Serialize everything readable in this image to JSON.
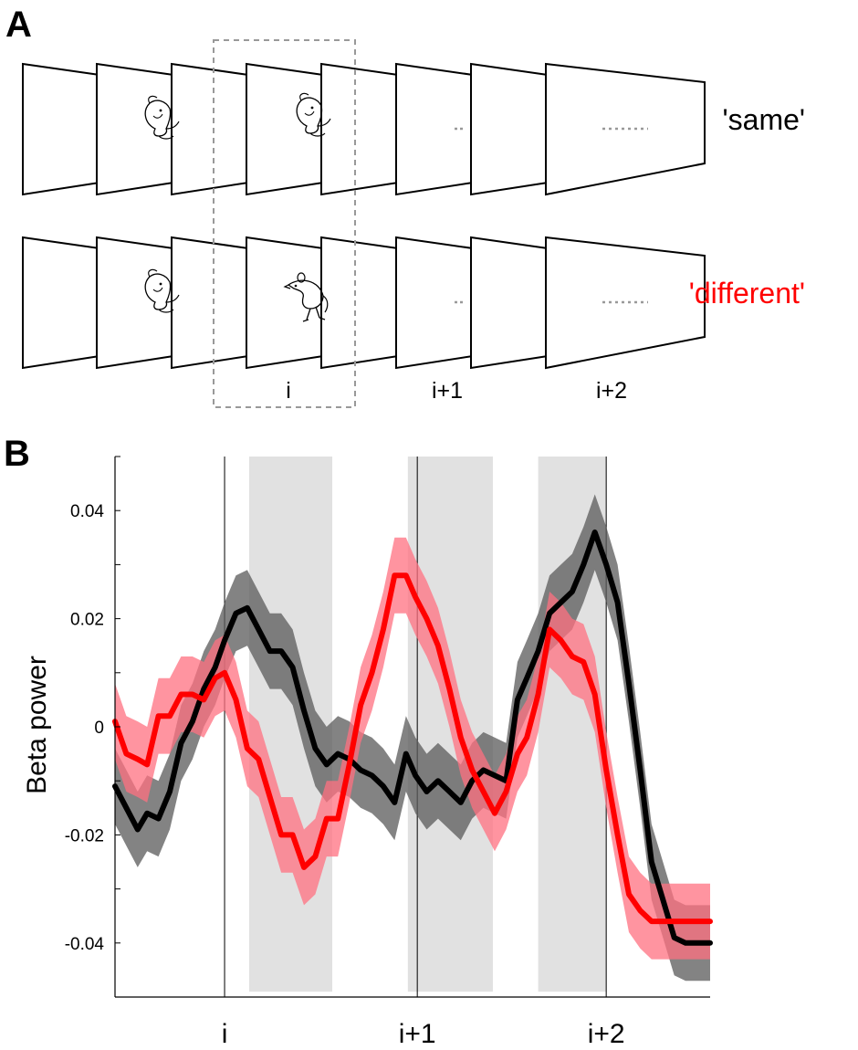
{
  "panel_a": {
    "letter": "A",
    "rows": [
      {
        "label": "'same'",
        "color": "#000000",
        "probe": "same-creature"
      },
      {
        "label": "'different'",
        "color": "#ff0000",
        "probe": "different-creature"
      }
    ],
    "position_labels": [
      "i",
      "i+1",
      "i+2"
    ]
  },
  "panel_b": {
    "letter": "B"
  },
  "chart_data": {
    "type": "line",
    "ylabel": "Beta power",
    "xlabel": "",
    "ylim": [
      -0.05,
      0.05
    ],
    "yticks": [
      -0.04,
      -0.02,
      0,
      0.02,
      0.04
    ],
    "ytick_labels": [
      "-0.04",
      "-0.02",
      "0",
      "0.02",
      "0.04"
    ],
    "xticks": [
      {
        "x": 0.98,
        "label": "i"
      },
      {
        "x": 2.0,
        "label": "i+1"
      },
      {
        "x": 3.0,
        "label": "i+2"
      }
    ],
    "xlim": [
      0.4,
      3.55
    ],
    "shaded_windows": [
      [
        1.11,
        1.55
      ],
      [
        1.95,
        2.4
      ],
      [
        2.64,
        3.0
      ]
    ],
    "grid": false,
    "series": [
      {
        "name": "'same'",
        "color": "#000000",
        "band_color": "#5a5a5a",
        "x": [
          0.4,
          0.46,
          0.52,
          0.57,
          0.63,
          0.69,
          0.75,
          0.81,
          0.87,
          0.93,
          0.98,
          1.04,
          1.1,
          1.16,
          1.22,
          1.28,
          1.34,
          1.4,
          1.46,
          1.52,
          1.58,
          1.64,
          1.7,
          1.76,
          1.82,
          1.88,
          1.94,
          1.99,
          2.05,
          2.11,
          2.17,
          2.23,
          2.29,
          2.35,
          2.41,
          2.47,
          2.53,
          2.58,
          2.64,
          2.7,
          2.76,
          2.82,
          2.88,
          2.94,
          3.0,
          3.06,
          3.12,
          3.18,
          3.24,
          3.3,
          3.36,
          3.42,
          3.48,
          3.55
        ],
        "y": [
          -0.011,
          -0.015,
          -0.019,
          -0.016,
          -0.017,
          -0.012,
          -0.003,
          0.001,
          0.007,
          0.011,
          0.016,
          0.021,
          0.022,
          0.018,
          0.014,
          0.014,
          0.011,
          0.003,
          -0.004,
          -0.007,
          -0.005,
          -0.006,
          -0.008,
          -0.009,
          -0.011,
          -0.014,
          -0.005,
          -0.009,
          -0.012,
          -0.01,
          -0.012,
          -0.014,
          -0.01,
          -0.008,
          -0.009,
          -0.01,
          0.005,
          0.009,
          0.014,
          0.021,
          0.023,
          0.025,
          0.03,
          0.036,
          0.03,
          0.023,
          0.008,
          -0.008,
          -0.025,
          -0.032,
          -0.039,
          -0.04,
          -0.04,
          -0.04
        ],
        "err": 0.007
      },
      {
        "name": "'different'",
        "color": "#ff0000",
        "band_color": "#ff7080",
        "x": [
          0.4,
          0.46,
          0.52,
          0.57,
          0.63,
          0.69,
          0.75,
          0.81,
          0.87,
          0.93,
          0.98,
          1.04,
          1.1,
          1.16,
          1.22,
          1.28,
          1.34,
          1.4,
          1.46,
          1.52,
          1.58,
          1.64,
          1.7,
          1.76,
          1.82,
          1.88,
          1.94,
          1.99,
          2.05,
          2.11,
          2.17,
          2.23,
          2.29,
          2.35,
          2.41,
          2.47,
          2.53,
          2.58,
          2.64,
          2.7,
          2.76,
          2.82,
          2.88,
          2.94,
          3.0,
          3.06,
          3.12,
          3.18,
          3.24,
          3.3,
          3.36,
          3.42,
          3.48,
          3.55
        ],
        "y": [
          0.001,
          -0.005,
          -0.006,
          -0.007,
          0.002,
          0.002,
          0.006,
          0.006,
          0.005,
          0.009,
          0.01,
          0.005,
          -0.004,
          -0.006,
          -0.013,
          -0.02,
          -0.02,
          -0.026,
          -0.024,
          -0.017,
          -0.017,
          -0.007,
          0.004,
          0.01,
          0.018,
          0.028,
          0.028,
          0.024,
          0.02,
          0.015,
          0.007,
          -0.002,
          -0.008,
          -0.012,
          -0.016,
          -0.012,
          -0.005,
          -0.002,
          0.006,
          0.018,
          0.016,
          0.013,
          0.012,
          0.006,
          -0.008,
          -0.02,
          -0.031,
          -0.034,
          -0.036,
          -0.036,
          -0.036,
          -0.036,
          -0.036,
          -0.036
        ],
        "err": 0.007
      }
    ]
  }
}
